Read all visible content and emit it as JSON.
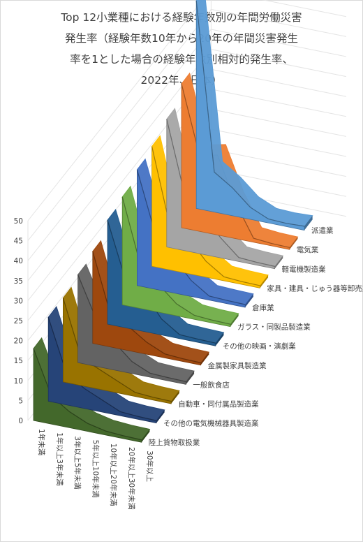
{
  "chart_data": {
    "type": "area",
    "title_lines": [
      "Top 12小業種における経験年数別の年間労働災害",
      "発生率（経験年数10年から20年の年間災害発生",
      "率を1とした場合の経験年数別相対的発生率、",
      "2022年、日本）"
    ],
    "categories": [
      "1年未満",
      "1年以上3年未満",
      "3年以上5年未満",
      "5年以上10年未満",
      "10年以上20年未満",
      "20年以上30年未満",
      "30年以上"
    ],
    "ylim": [
      0,
      50
    ],
    "yticks": [
      0,
      5,
      10,
      15,
      20,
      25,
      30,
      35,
      40,
      45,
      50
    ],
    "series": [
      {
        "name": "派遣業",
        "color": "#5b9bd5",
        "values": [
          52,
          10,
          7,
          3,
          1,
          0.8,
          1
        ]
      },
      {
        "name": "電気業",
        "color": "#ed7d31",
        "values": [
          36,
          19,
          20,
          9,
          1,
          0.6,
          0.5
        ]
      },
      {
        "name": "軽電機製造業",
        "color": "#a5a5a5",
        "values": [
          32,
          14,
          10,
          5,
          1,
          0.7,
          0.6
        ]
      },
      {
        "name": "家具・建具・じゅう器等卸売業",
        "color": "#ffc000",
        "values": [
          30,
          11,
          9,
          4,
          1,
          0.7,
          0.6
        ]
      },
      {
        "name": "倉庫業",
        "color": "#4472c4",
        "values": [
          29,
          14,
          9,
          4,
          1,
          0.8,
          0.7
        ]
      },
      {
        "name": "ガラス・同製品製造業",
        "color": "#70ad47",
        "values": [
          27,
          11,
          7,
          3,
          1,
          0.7,
          0.6
        ]
      },
      {
        "name": "その他の映画・演劇業",
        "color": "#255e91",
        "values": [
          26,
          12,
          10,
          4,
          1,
          0.8,
          0.7
        ]
      },
      {
        "name": "金属製家具製造業",
        "color": "#9e480e",
        "values": [
          23,
          8,
          6,
          3,
          1,
          0.7,
          0.6
        ]
      },
      {
        "name": "一般飲食店",
        "color": "#636363",
        "values": [
          22,
          12,
          7,
          3,
          1,
          0.8,
          0.7
        ]
      },
      {
        "name": "自動車・同付属品製造業",
        "color": "#997300",
        "values": [
          21,
          7,
          5,
          3,
          1,
          0.7,
          0.6
        ]
      },
      {
        "name": "その他の電気機械器具製造業",
        "color": "#264478",
        "values": [
          21,
          8,
          5,
          3,
          1,
          0.7,
          0.6
        ]
      },
      {
        "name": "陸上貨物取扱業",
        "color": "#43682b",
        "values": [
          18,
          7,
          4,
          2,
          1,
          0.7,
          0.6
        ]
      }
    ]
  }
}
